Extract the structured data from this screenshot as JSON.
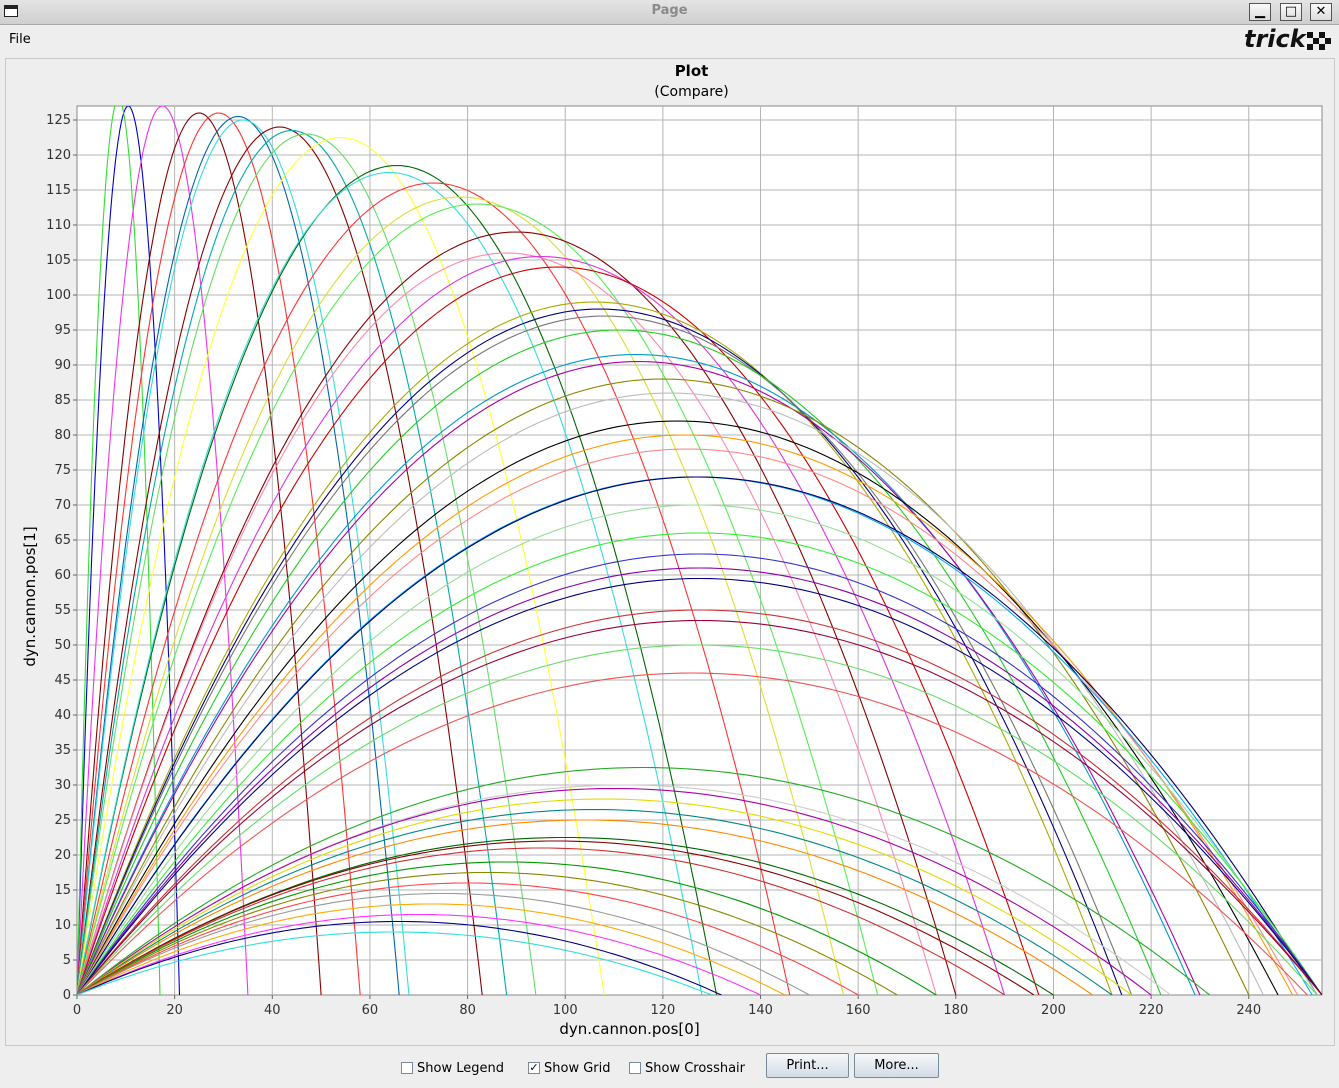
{
  "window": {
    "title": "Page",
    "minimize_label": "▁",
    "maximize_label": "□",
    "close_label": "✕"
  },
  "menubar": {
    "file_label": "File",
    "logo_text": "trick"
  },
  "chart_data": {
    "type": "line",
    "title": "Plot",
    "subtitle": "(Compare)",
    "xlabel": "dyn.cannon.pos[0]",
    "ylabel": "dyn.cannon.pos[1]",
    "xlim": [
      0,
      255
    ],
    "ylim": [
      0,
      127
    ],
    "xticks": [
      0,
      20,
      40,
      60,
      80,
      100,
      120,
      140,
      160,
      180,
      200,
      220,
      240
    ],
    "yticks": [
      0,
      5,
      10,
      15,
      20,
      25,
      30,
      35,
      40,
      45,
      50,
      55,
      60,
      65,
      70,
      75,
      80,
      85,
      90,
      95,
      100,
      105,
      110,
      115,
      120,
      125
    ],
    "grid": true,
    "legend": "hidden",
    "background": "#ffffff",
    "trajectories": [
      {
        "range": 21,
        "apex": 127,
        "color": "#0000cc"
      },
      {
        "range": 17,
        "apex": 128,
        "color": "#33dd33"
      },
      {
        "range": 35,
        "apex": 127,
        "color": "#ee33ee"
      },
      {
        "range": 50,
        "apex": 126,
        "color": "#880000"
      },
      {
        "range": 58,
        "apex": 126,
        "color": "#ff3333"
      },
      {
        "range": 66,
        "apex": 125.5,
        "color": "#0066aa"
      },
      {
        "range": 68,
        "apex": 125,
        "color": "#33dddd"
      },
      {
        "range": 83,
        "apex": 124,
        "color": "#880000"
      },
      {
        "range": 88,
        "apex": 123.5,
        "color": "#00aaaa"
      },
      {
        "range": 94,
        "apex": 123,
        "color": "#66dd66"
      },
      {
        "range": 108,
        "apex": 122.5,
        "color": "#ffff33"
      },
      {
        "range": 131,
        "apex": 118.5,
        "color": "#006600"
      },
      {
        "range": 128,
        "apex": 117.5,
        "color": "#33dddd"
      },
      {
        "range": 146,
        "apex": 116,
        "color": "#ff3333"
      },
      {
        "range": 157,
        "apex": 114,
        "color": "#dddd33"
      },
      {
        "range": 164,
        "apex": 113,
        "color": "#55ee55"
      },
      {
        "range": 180,
        "apex": 109,
        "color": "#880000"
      },
      {
        "range": 176,
        "apex": 106,
        "color": "#ff88aa"
      },
      {
        "range": 190,
        "apex": 105.5,
        "color": "#dd33dd"
      },
      {
        "range": 197,
        "apex": 104,
        "color": "#cc0000"
      },
      {
        "range": 212,
        "apex": 99,
        "color": "#aaaa00"
      },
      {
        "range": 214,
        "apex": 98,
        "color": "#000080"
      },
      {
        "range": 216,
        "apex": 97,
        "color": "#777777"
      },
      {
        "range": 222,
        "apex": 95,
        "color": "#22cc22"
      },
      {
        "range": 229,
        "apex": 91.5,
        "color": "#0099cc"
      },
      {
        "range": 230,
        "apex": 90.5,
        "color": "#aa00aa"
      },
      {
        "range": 240,
        "apex": 88,
        "color": "#888800"
      },
      {
        "range": 243,
        "apex": 86,
        "color": "#bbbbbb"
      },
      {
        "range": 246,
        "apex": 82,
        "color": "#000000"
      },
      {
        "range": 249,
        "apex": 80,
        "color": "#ff9900"
      },
      {
        "range": 250,
        "apex": 78,
        "color": "#ff8888"
      },
      {
        "range": 253,
        "apex": 74,
        "color": "#00aaff"
      },
      {
        "range": 254,
        "apex": 74,
        "color": "#000066"
      },
      {
        "range": 254,
        "apex": 70,
        "color": "#99dd99"
      },
      {
        "range": 255,
        "apex": 66,
        "color": "#33ee33"
      },
      {
        "range": 255,
        "apex": 63,
        "color": "#3333cc"
      },
      {
        "range": 255,
        "apex": 61,
        "color": "#8800aa"
      },
      {
        "range": 255,
        "apex": 59.5,
        "color": "#000080"
      },
      {
        "range": 255,
        "apex": 55,
        "color": "#cc3333"
      },
      {
        "range": 255,
        "apex": 53.5,
        "color": "#990033"
      },
      {
        "range": 254,
        "apex": 50,
        "color": "#66dd66"
      },
      {
        "range": 252,
        "apex": 46,
        "color": "#ee5555"
      },
      {
        "range": 232,
        "apex": 32.5,
        "color": "#22aa22"
      },
      {
        "range": 224,
        "apex": 30,
        "color": "#cccccc"
      },
      {
        "range": 220,
        "apex": 29.5,
        "color": "#aa00aa"
      },
      {
        "range": 216,
        "apex": 28,
        "color": "#dddd00"
      },
      {
        "range": 212,
        "apex": 26.5,
        "color": "#008888"
      },
      {
        "range": 208,
        "apex": 25,
        "color": "#ff8800"
      },
      {
        "range": 200,
        "apex": 22.5,
        "color": "#006600"
      },
      {
        "range": 196,
        "apex": 22,
        "color": "#880000"
      },
      {
        "range": 190,
        "apex": 21,
        "color": "#cc3333"
      },
      {
        "range": 176,
        "apex": 19,
        "color": "#009900"
      },
      {
        "range": 168,
        "apex": 17.5,
        "color": "#888800"
      },
      {
        "range": 160,
        "apex": 16,
        "color": "#ff4444"
      },
      {
        "range": 150,
        "apex": 14.5,
        "color": "#999999"
      },
      {
        "range": 145,
        "apex": 13,
        "color": "#ffaa00"
      },
      {
        "range": 140,
        "apex": 11.5,
        "color": "#ff33ff"
      },
      {
        "range": 132,
        "apex": 10.5,
        "color": "#000080"
      },
      {
        "range": 130,
        "apex": 9,
        "color": "#33dddd"
      }
    ]
  },
  "controls": {
    "show_legend": {
      "label": "Show Legend",
      "checked": false
    },
    "show_grid": {
      "label": "Show Grid",
      "checked": true
    },
    "show_crosshair": {
      "label": "Show Crosshair",
      "checked": false
    },
    "print_label": "Print...",
    "more_label": "More..."
  }
}
